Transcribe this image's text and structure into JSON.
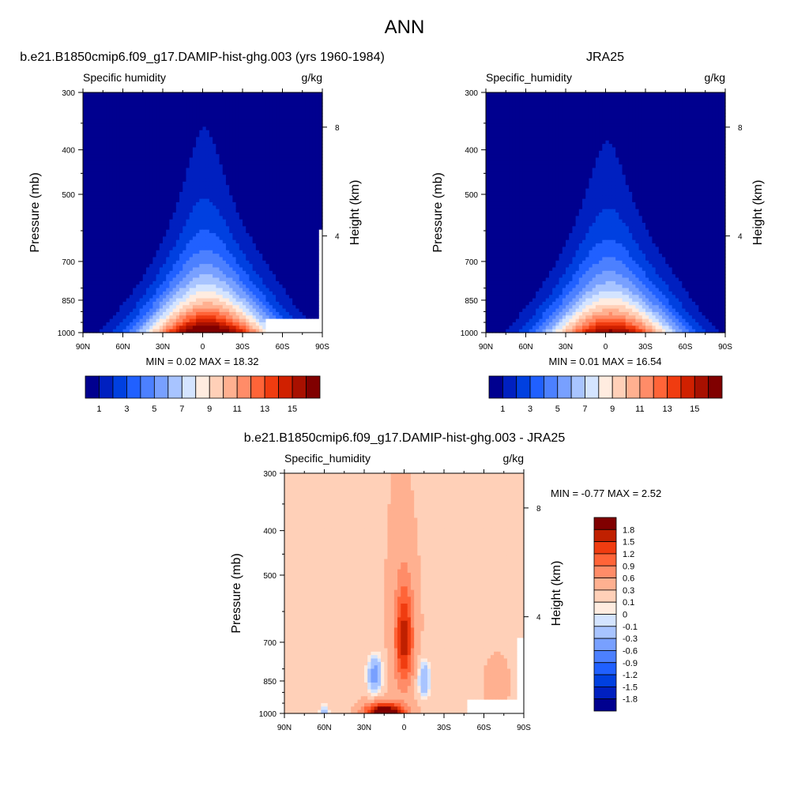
{
  "main_title": "ANN",
  "colors": {
    "full_palette": [
      "#00008f",
      "#0020c0",
      "#0040e0",
      "#2060ff",
      "#4c80ff",
      "#78a0ff",
      "#a8c4ff",
      "#d4e4ff",
      "#ffece0",
      "#ffd0b8",
      "#ffb090",
      "#ff8c68",
      "#ff6438",
      "#f03c10",
      "#d02000",
      "#a81000",
      "#800000"
    ],
    "diff_palette": [
      "#00008f",
      "#0020c0",
      "#0040e0",
      "#2060ff",
      "#4c80ff",
      "#78a0ff",
      "#a8c4ff",
      "#d4e4ff",
      "#ffece0",
      "#ffd0b8",
      "#ffb090",
      "#ff8c68",
      "#ff6438",
      "#f03c10",
      "#c02000",
      "#800000"
    ],
    "missing": "#ffffff"
  },
  "chart_data": [
    {
      "type": "heatmap",
      "id": "model",
      "title": "b.e21.B1850cmip6.f09_g17.DAMIP-hist-ghg.003 (yrs 1960-1984)",
      "left_label": "Specific humidity",
      "right_label": "g/kg",
      "xlabel": "",
      "ylabel": "Pressure (mb)",
      "y2label": "Height (km)",
      "x_ticks": [
        "90N",
        "60N",
        "30N",
        "0",
        "30S",
        "60S",
        "90S"
      ],
      "x_tick_values": [
        90,
        60,
        30,
        0,
        -30,
        -60,
        -90
      ],
      "y_ticks": [
        "300",
        "400",
        "500",
        "700",
        "850",
        "1000"
      ],
      "y_tick_values": [
        300,
        400,
        500,
        700,
        850,
        1000
      ],
      "y2_ticks": [
        "8",
        "4"
      ],
      "y2_tick_values": [
        8,
        4
      ],
      "xlim": [
        90,
        -90
      ],
      "ylim": [
        1000,
        300
      ],
      "peak": 18.32,
      "min_max_text": "MIN =   0.02  MAX =  18.32",
      "colorbar_levels": [
        0,
        1,
        2,
        3,
        4,
        5,
        6,
        7,
        8,
        9,
        10,
        11,
        12,
        13,
        14,
        15,
        16
      ],
      "colorbar_labels": [
        "1",
        "3",
        "5",
        "7",
        "9",
        "11",
        "13",
        "15"
      ]
    },
    {
      "type": "heatmap",
      "id": "obs",
      "title": "JRA25",
      "left_label": "Specific_humidity",
      "right_label": "g/kg",
      "xlabel": "",
      "ylabel": "Pressure (mb)",
      "y2label": "Height (km)",
      "x_ticks": [
        "90N",
        "60N",
        "30N",
        "0",
        "30S",
        "60S",
        "90S"
      ],
      "x_tick_values": [
        90,
        60,
        30,
        0,
        -30,
        -60,
        -90
      ],
      "y_ticks": [
        "300",
        "400",
        "500",
        "700",
        "850",
        "1000"
      ],
      "y_tick_values": [
        300,
        400,
        500,
        700,
        850,
        1000
      ],
      "y2_ticks": [
        "8",
        "4"
      ],
      "y2_tick_values": [
        8,
        4
      ],
      "xlim": [
        90,
        -90
      ],
      "ylim": [
        1000,
        300
      ],
      "peak": 16.54,
      "min_max_text": "MIN =   0.01  MAX =  16.54",
      "colorbar_levels": [
        0,
        1,
        2,
        3,
        4,
        5,
        6,
        7,
        8,
        9,
        10,
        11,
        12,
        13,
        14,
        15,
        16
      ],
      "colorbar_labels": [
        "1",
        "3",
        "5",
        "7",
        "9",
        "11",
        "13",
        "15"
      ]
    },
    {
      "type": "heatmap",
      "id": "diff",
      "title": "b.e21.B1850cmip6.f09_g17.DAMIP-hist-ghg.003 - JRA25",
      "left_label": "Specific_humidity",
      "right_label": "g/kg",
      "xlabel": "",
      "ylabel": "Pressure (mb)",
      "y2label": "Height (km)",
      "x_ticks": [
        "90N",
        "60N",
        "30N",
        "0",
        "30S",
        "60S",
        "90S"
      ],
      "x_tick_values": [
        90,
        60,
        30,
        0,
        -30,
        -60,
        -90
      ],
      "y_ticks": [
        "300",
        "400",
        "500",
        "700",
        "850",
        "1000"
      ],
      "y_tick_values": [
        300,
        400,
        500,
        700,
        850,
        1000
      ],
      "y2_ticks": [
        "8",
        "4"
      ],
      "y2_tick_values": [
        8,
        4
      ],
      "xlim": [
        90,
        -90
      ],
      "ylim": [
        1000,
        300
      ],
      "min_max_text": "MIN =  -0.77  MAX =   2.52",
      "colorbar_levels": [
        -1.8,
        -1.5,
        -1.2,
        -0.9,
        -0.6,
        -0.3,
        -0.1,
        0,
        0.1,
        0.3,
        0.6,
        0.9,
        1.2,
        1.5,
        1.8
      ],
      "colorbar_labels": [
        "1.8",
        "1.5",
        "1.2",
        "0.9",
        "0.6",
        "0.3",
        "0.1",
        "0",
        "-0.1",
        "-0.3",
        "-0.6",
        "-0.9",
        "-1.2",
        "-1.5",
        "-1.8"
      ]
    }
  ]
}
